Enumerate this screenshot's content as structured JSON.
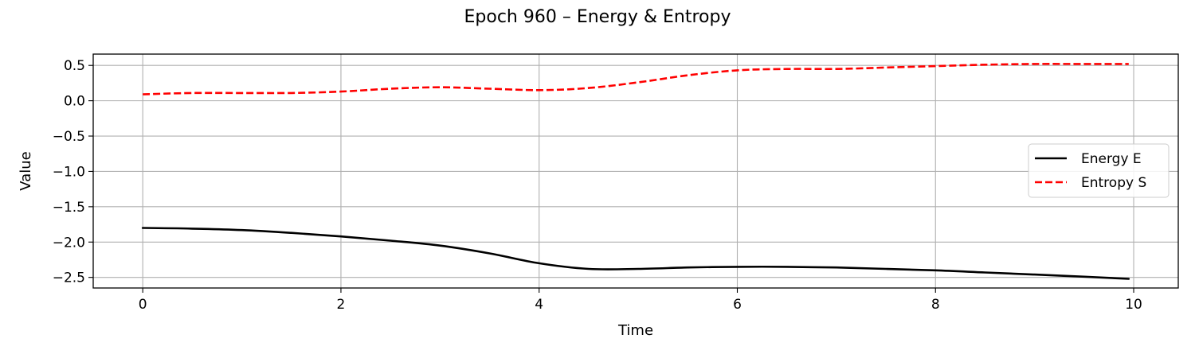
{
  "chart_data": {
    "type": "line",
    "title": "Epoch 960 – Energy & Entropy",
    "xlabel": "Time",
    "ylabel": "Value",
    "xlim": [
      -0.5,
      10.45
    ],
    "ylim": [
      -2.65,
      0.66
    ],
    "xticks": [
      0,
      2,
      4,
      6,
      8,
      10
    ],
    "xtick_labels": [
      "0",
      "2",
      "4",
      "6",
      "8",
      "10"
    ],
    "yticks": [
      0.5,
      0.0,
      -0.5,
      -1.0,
      -1.5,
      -2.0,
      -2.5
    ],
    "ytick_labels": [
      "0.5",
      "0.0",
      "−0.5",
      "−1.0",
      "−1.5",
      "−2.0",
      "−2.5"
    ],
    "grid": true,
    "legend_position": "center-right",
    "series": [
      {
        "name": "Energy E",
        "color": "#000000",
        "style": "solid",
        "x": [
          0,
          0.5,
          1,
          1.5,
          2,
          2.5,
          3,
          3.5,
          4,
          4.5,
          5,
          5.5,
          6,
          6.5,
          7,
          7.5,
          8,
          8.5,
          9,
          9.5,
          9.95
        ],
        "y": [
          -1.8,
          -1.81,
          -1.83,
          -1.87,
          -1.92,
          -1.98,
          -2.05,
          -2.16,
          -2.3,
          -2.38,
          -2.38,
          -2.36,
          -2.35,
          -2.35,
          -2.36,
          -2.38,
          -2.4,
          -2.43,
          -2.46,
          -2.49,
          -2.52
        ]
      },
      {
        "name": "Entropy S",
        "color": "#ff0000",
        "style": "dashed",
        "x": [
          0,
          0.5,
          1,
          1.5,
          2,
          2.5,
          3,
          3.5,
          4,
          4.5,
          5,
          5.5,
          6,
          6.5,
          7,
          7.5,
          8,
          8.5,
          9,
          9.5,
          9.95
        ],
        "y": [
          0.09,
          0.11,
          0.11,
          0.11,
          0.13,
          0.17,
          0.19,
          0.17,
          0.15,
          0.18,
          0.26,
          0.36,
          0.43,
          0.45,
          0.45,
          0.47,
          0.49,
          0.51,
          0.52,
          0.52,
          0.52
        ]
      }
    ]
  }
}
